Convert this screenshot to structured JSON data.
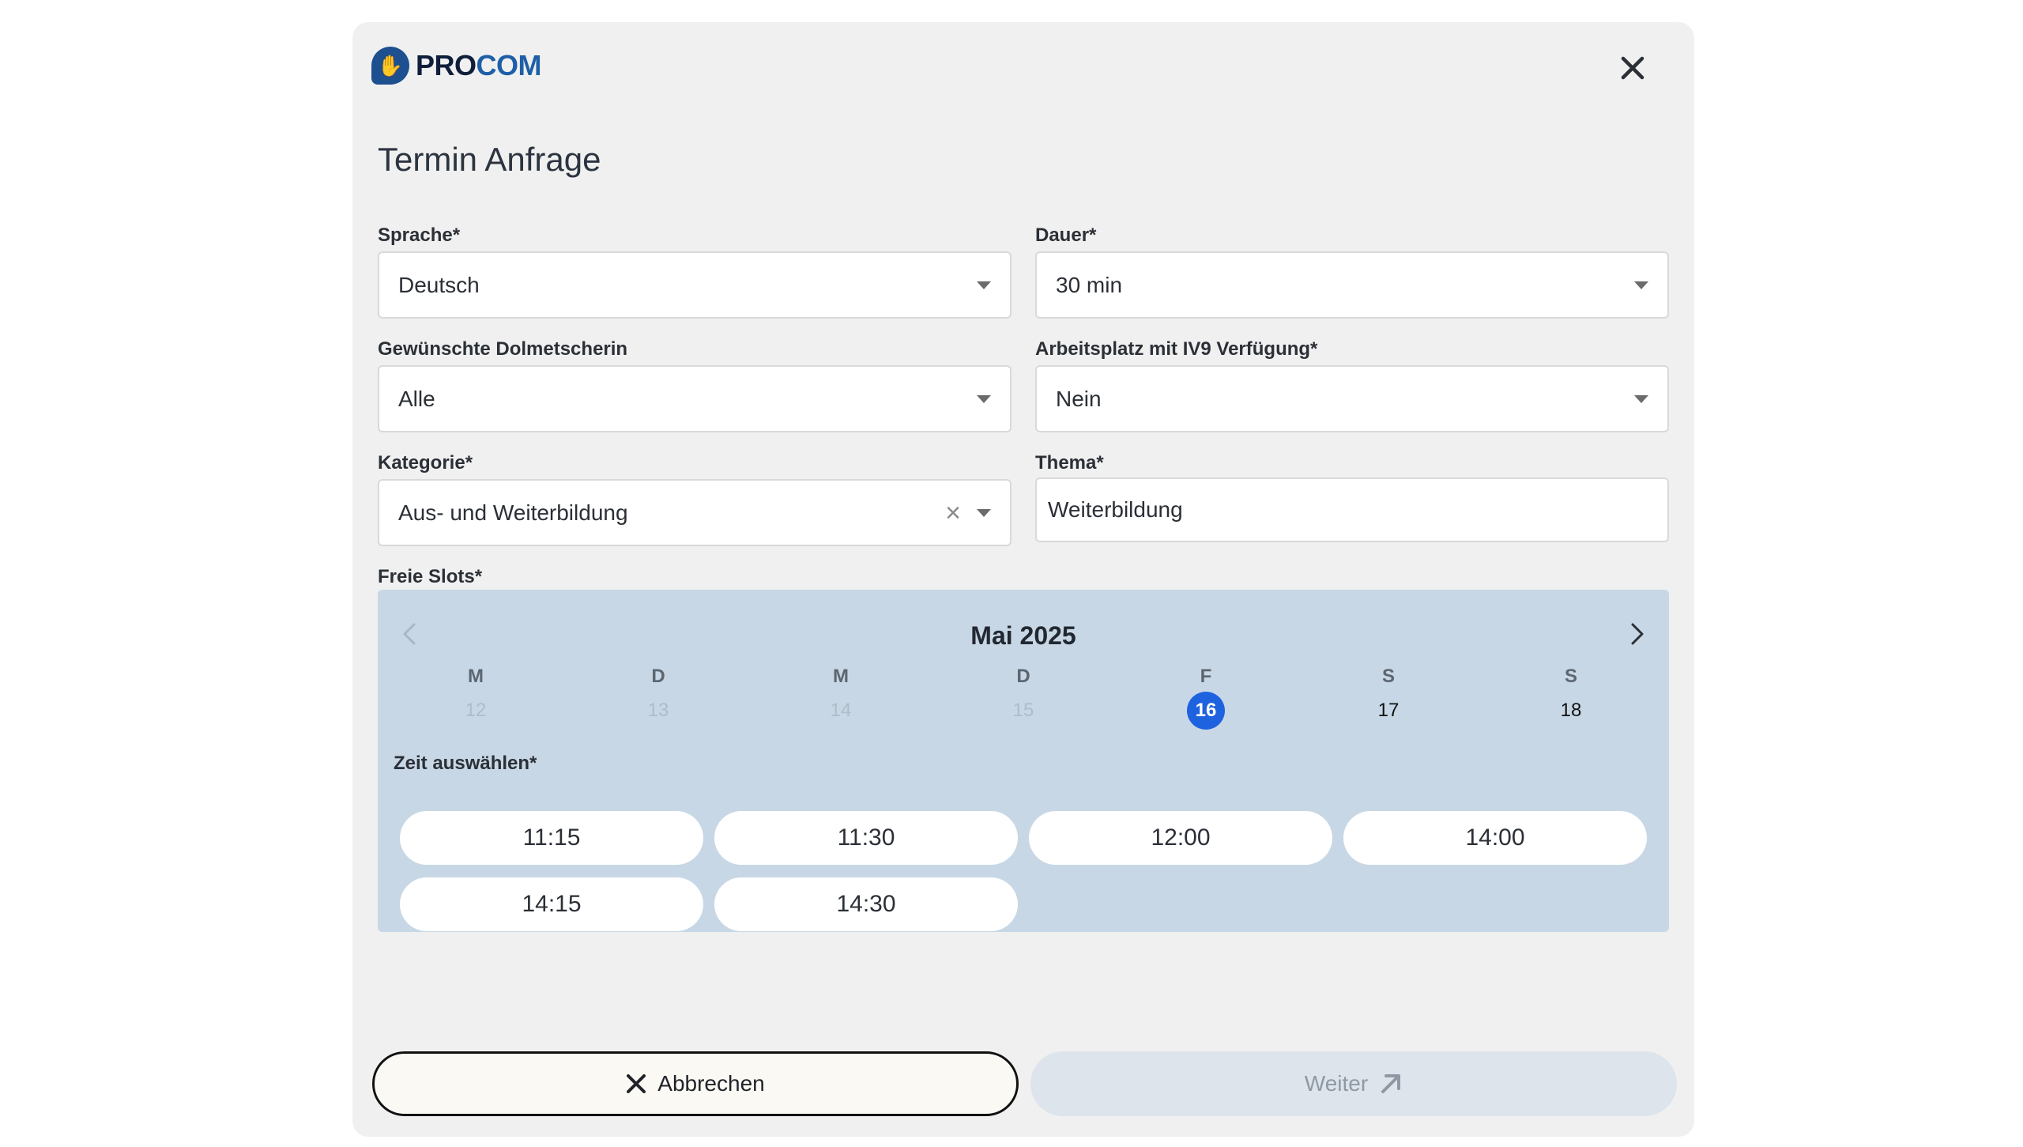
{
  "brand": {
    "pro": "PRO",
    "com": "COM",
    "logo_icon": "hand-icon"
  },
  "dialog": {
    "title": "Termin Anfrage",
    "close_icon": "close-icon"
  },
  "form": {
    "sprache": {
      "label": "Sprache*",
      "value": "Deutsch"
    },
    "dauer": {
      "label": "Dauer*",
      "value": "30 min"
    },
    "dolmetscherin": {
      "label": "Gewünschte Dolmetscherin",
      "value": "Alle"
    },
    "arbeitsplatz": {
      "label": "Arbeitsplatz mit IV9 Verfügung*",
      "value": "Nein"
    },
    "kategorie": {
      "label": "Kategorie*",
      "value": "Aus- und Weiterbildung",
      "clear": "×"
    },
    "thema": {
      "label": "Thema*",
      "value": "Weiterbildung"
    }
  },
  "slots": {
    "label": "Freie Slots*",
    "month": "Mai 2025",
    "weekdays": [
      "M",
      "D",
      "M",
      "D",
      "F",
      "S",
      "S"
    ],
    "days": [
      {
        "num": "12",
        "available": false
      },
      {
        "num": "13",
        "available": false
      },
      {
        "num": "14",
        "available": false
      },
      {
        "num": "15",
        "available": false
      },
      {
        "num": "16",
        "available": true,
        "selected": true
      },
      {
        "num": "17",
        "available": true
      },
      {
        "num": "18",
        "available": true
      }
    ],
    "time_label": "Zeit auswählen*",
    "times": [
      "11:15",
      "11:30",
      "12:00",
      "14:00",
      "14:15",
      "14:30"
    ]
  },
  "actions": {
    "cancel": "Abbrechen",
    "next": "Weiter"
  },
  "colors": {
    "accent": "#1f62e0",
    "calendar_bg": "#c7d7e5",
    "brand": "#1e5fa8"
  }
}
